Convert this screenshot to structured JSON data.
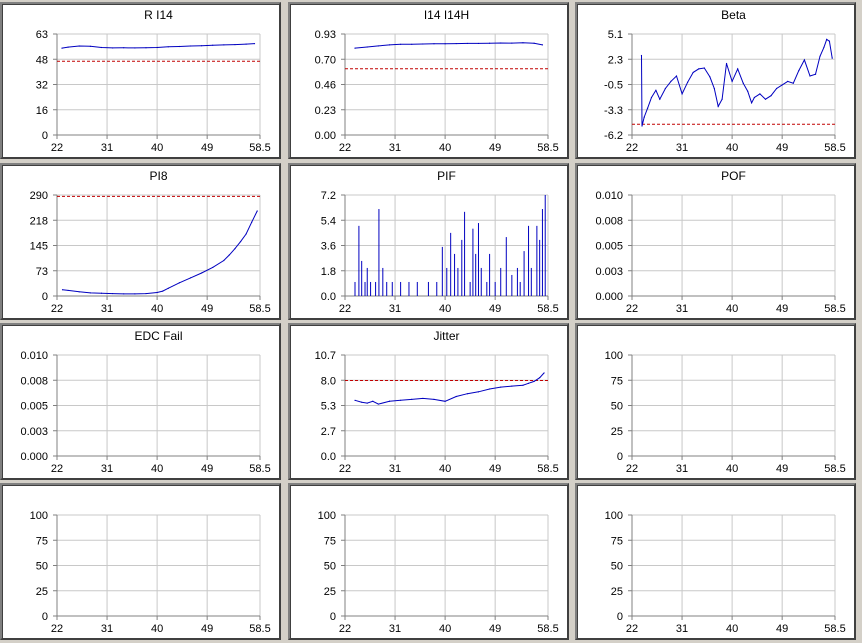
{
  "theme": {
    "background": "#d4d0c8",
    "panel_bg": "#ffffff",
    "grid_color": "#c8c8c8",
    "series_color": "#0000c0",
    "threshold_color": "#c00000"
  },
  "chart_data": [
    {
      "type": "line",
      "title": "R I14",
      "x_ticks": [
        "22",
        "31",
        "40",
        "49",
        "58.5"
      ],
      "xlim": [
        22,
        58.5
      ],
      "y_ticks": [
        "0",
        "16",
        "32",
        "48",
        "63"
      ],
      "ylim": [
        0,
        63
      ],
      "threshold": 46,
      "series": [
        {
          "x": [
            22.9,
            24,
            26,
            28,
            30,
            32,
            34,
            36,
            38,
            40,
            42,
            44,
            46,
            48,
            50,
            52,
            54,
            56,
            57.5
          ],
          "values": [
            54.2,
            54.8,
            55.5,
            55.3,
            54.6,
            54.3,
            54.4,
            54.3,
            54.4,
            54.6,
            55.0,
            55.2,
            55.5,
            55.7,
            56.0,
            56.2,
            56.4,
            56.7,
            57.0
          ]
        }
      ]
    },
    {
      "type": "line",
      "title": "I14 I14H",
      "x_ticks": [
        "22",
        "31",
        "40",
        "49",
        "58.5"
      ],
      "xlim": [
        22,
        58.5
      ],
      "y_ticks": [
        "0.00",
        "0.23",
        "0.46",
        "0.70",
        "0.93"
      ],
      "ylim": [
        0,
        0.93
      ],
      "threshold": 0.61,
      "series": [
        {
          "x": [
            23.8,
            26,
            28,
            30,
            32,
            34,
            36,
            38,
            40,
            42,
            44,
            46,
            48,
            50,
            52,
            54,
            56,
            57.5
          ],
          "values": [
            0.8,
            0.81,
            0.82,
            0.83,
            0.835,
            0.835,
            0.838,
            0.84,
            0.84,
            0.842,
            0.843,
            0.843,
            0.845,
            0.847,
            0.846,
            0.85,
            0.845,
            0.83
          ]
        }
      ]
    },
    {
      "type": "line",
      "title": "Beta",
      "x_ticks": [
        "22",
        "31",
        "40",
        "49",
        "58.5"
      ],
      "xlim": [
        22,
        58.5
      ],
      "y_ticks": [
        "-6.2",
        "-3.3",
        "-0.5",
        "2.3",
        "5.1"
      ],
      "ylim": [
        -6.2,
        5.1
      ],
      "threshold": -5.0,
      "series": [
        {
          "x": [
            23.7,
            23.8,
            24.2,
            24.8,
            25.5,
            26.3,
            27,
            28,
            29,
            30,
            31,
            32,
            33,
            34,
            35,
            36,
            36.8,
            37.5,
            38.2,
            39,
            40,
            41,
            42,
            42.8,
            43.5,
            44,
            45,
            46,
            47,
            48,
            49,
            50,
            51,
            52,
            53,
            54,
            55,
            55.8,
            56.5,
            57,
            57.5,
            58
          ],
          "values": [
            2.7,
            -5.2,
            -4.2,
            -3.2,
            -2.0,
            -1.2,
            -2.2,
            -1.0,
            -0.2,
            0.4,
            -1.6,
            -0.3,
            0.8,
            1.2,
            1.3,
            0.3,
            -1.0,
            -3.0,
            -2.2,
            1.8,
            -0.2,
            1.2,
            -0.4,
            -1.3,
            -2.6,
            -2.0,
            -1.6,
            -2.2,
            -1.8,
            -1.0,
            -0.6,
            -0.2,
            -0.4,
            1.0,
            2.2,
            0.4,
            0.6,
            2.6,
            3.6,
            4.5,
            4.3,
            2.4
          ]
        }
      ]
    },
    {
      "type": "line",
      "title": "PI8",
      "x_ticks": [
        "22",
        "31",
        "40",
        "49",
        "58.5"
      ],
      "xlim": [
        22,
        58.5
      ],
      "y_ticks": [
        "0",
        "73",
        "145",
        "218",
        "290"
      ],
      "ylim": [
        0,
        290
      ],
      "threshold": 286,
      "series": [
        {
          "x": [
            23,
            24,
            26,
            28,
            30,
            32,
            34,
            36,
            38,
            40,
            41,
            42,
            44,
            46,
            48,
            50,
            52,
            53,
            54,
            55,
            56,
            57,
            58
          ],
          "values": [
            18,
            16,
            12,
            9,
            8,
            7,
            6,
            6,
            7,
            10,
            14,
            22,
            38,
            52,
            66,
            82,
            102,
            118,
            136,
            156,
            178,
            212,
            244
          ]
        }
      ]
    },
    {
      "type": "bar",
      "title": "PIF",
      "x_ticks": [
        "22",
        "31",
        "40",
        "49",
        "58.5"
      ],
      "xlim": [
        22,
        58.5
      ],
      "y_ticks": [
        "0.0",
        "1.8",
        "3.6",
        "5.4",
        "7.2"
      ],
      "ylim": [
        0,
        7.2
      ],
      "series": [
        {
          "x": [
            23.8,
            24.5,
            25,
            25.6,
            26,
            26.6,
            27.5,
            28.1,
            28.8,
            29.5,
            30.5,
            32,
            33.5,
            35,
            37,
            38.5,
            39.5,
            40.3,
            41,
            41.7,
            42.3,
            43,
            43.5,
            44.5,
            45,
            45.5,
            46,
            46.5,
            47.5,
            48,
            49,
            50,
            51,
            52,
            53,
            53.5,
            54.2,
            55,
            55.5,
            56.5,
            57,
            57.5,
            58
          ],
          "values": [
            1.0,
            5.0,
            2.5,
            1.0,
            2.0,
            1.0,
            1.0,
            6.2,
            2.0,
            1.0,
            1.0,
            1.0,
            1.0,
            1.0,
            1.0,
            1.0,
            3.5,
            2.0,
            4.5,
            3.0,
            2.0,
            4.0,
            6.0,
            1.0,
            4.8,
            3.0,
            5.2,
            2.0,
            1.0,
            3.0,
            1.0,
            2.0,
            4.2,
            1.5,
            2.0,
            1.0,
            3.2,
            5.0,
            2.0,
            5.0,
            4.0,
            6.2,
            7.2
          ]
        }
      ]
    },
    {
      "type": "line",
      "title": "POF",
      "x_ticks": [
        "22",
        "31",
        "40",
        "49",
        "58.5"
      ],
      "xlim": [
        22,
        58.5
      ],
      "y_ticks": [
        "0.000",
        "0.003",
        "0.005",
        "0.008",
        "0.010"
      ],
      "ylim": [
        0,
        0.01
      ],
      "series": []
    },
    {
      "type": "line",
      "title": "EDC Fail",
      "x_ticks": [
        "22",
        "31",
        "40",
        "49",
        "58.5"
      ],
      "xlim": [
        22,
        58.5
      ],
      "y_ticks": [
        "0.000",
        "0.003",
        "0.005",
        "0.008",
        "0.010"
      ],
      "ylim": [
        0,
        0.01
      ],
      "series": []
    },
    {
      "type": "line",
      "title": "Jitter",
      "x_ticks": [
        "22",
        "31",
        "40",
        "49",
        "58.5"
      ],
      "xlim": [
        22,
        58.5
      ],
      "y_ticks": [
        "0.0",
        "2.7",
        "5.3",
        "8.0",
        "10.7"
      ],
      "ylim": [
        0,
        10.7
      ],
      "threshold": 8.0,
      "series": [
        {
          "x": [
            23.8,
            25,
            26,
            27,
            28,
            30,
            32,
            34,
            36,
            38,
            40,
            42,
            44,
            46,
            48,
            50,
            52,
            54,
            55,
            56,
            57,
            57.8
          ],
          "values": [
            5.9,
            5.7,
            5.6,
            5.8,
            5.5,
            5.8,
            5.9,
            6.0,
            6.1,
            6.0,
            5.8,
            6.3,
            6.6,
            6.8,
            7.1,
            7.3,
            7.4,
            7.5,
            7.7,
            7.9,
            8.3,
            8.8
          ]
        }
      ]
    },
    {
      "type": "line",
      "title": "",
      "x_ticks": [
        "22",
        "31",
        "40",
        "49",
        "58.5"
      ],
      "xlim": [
        22,
        58.5
      ],
      "y_ticks": [
        "0",
        "25",
        "50",
        "75",
        "100"
      ],
      "ylim": [
        0,
        100
      ],
      "series": []
    },
    {
      "type": "line",
      "title": "",
      "x_ticks": [
        "22",
        "31",
        "40",
        "49",
        "58.5"
      ],
      "xlim": [
        22,
        58.5
      ],
      "y_ticks": [
        "0",
        "25",
        "50",
        "75",
        "100"
      ],
      "ylim": [
        0,
        100
      ],
      "series": []
    },
    {
      "type": "line",
      "title": "",
      "x_ticks": [
        "22",
        "31",
        "40",
        "49",
        "58.5"
      ],
      "xlim": [
        22,
        58.5
      ],
      "y_ticks": [
        "0",
        "25",
        "50",
        "75",
        "100"
      ],
      "ylim": [
        0,
        100
      ],
      "series": []
    },
    {
      "type": "line",
      "title": "",
      "x_ticks": [
        "22",
        "31",
        "40",
        "49",
        "58.5"
      ],
      "xlim": [
        22,
        58.5
      ],
      "y_ticks": [
        "0",
        "25",
        "50",
        "75",
        "100"
      ],
      "ylim": [
        0,
        100
      ],
      "series": []
    }
  ]
}
